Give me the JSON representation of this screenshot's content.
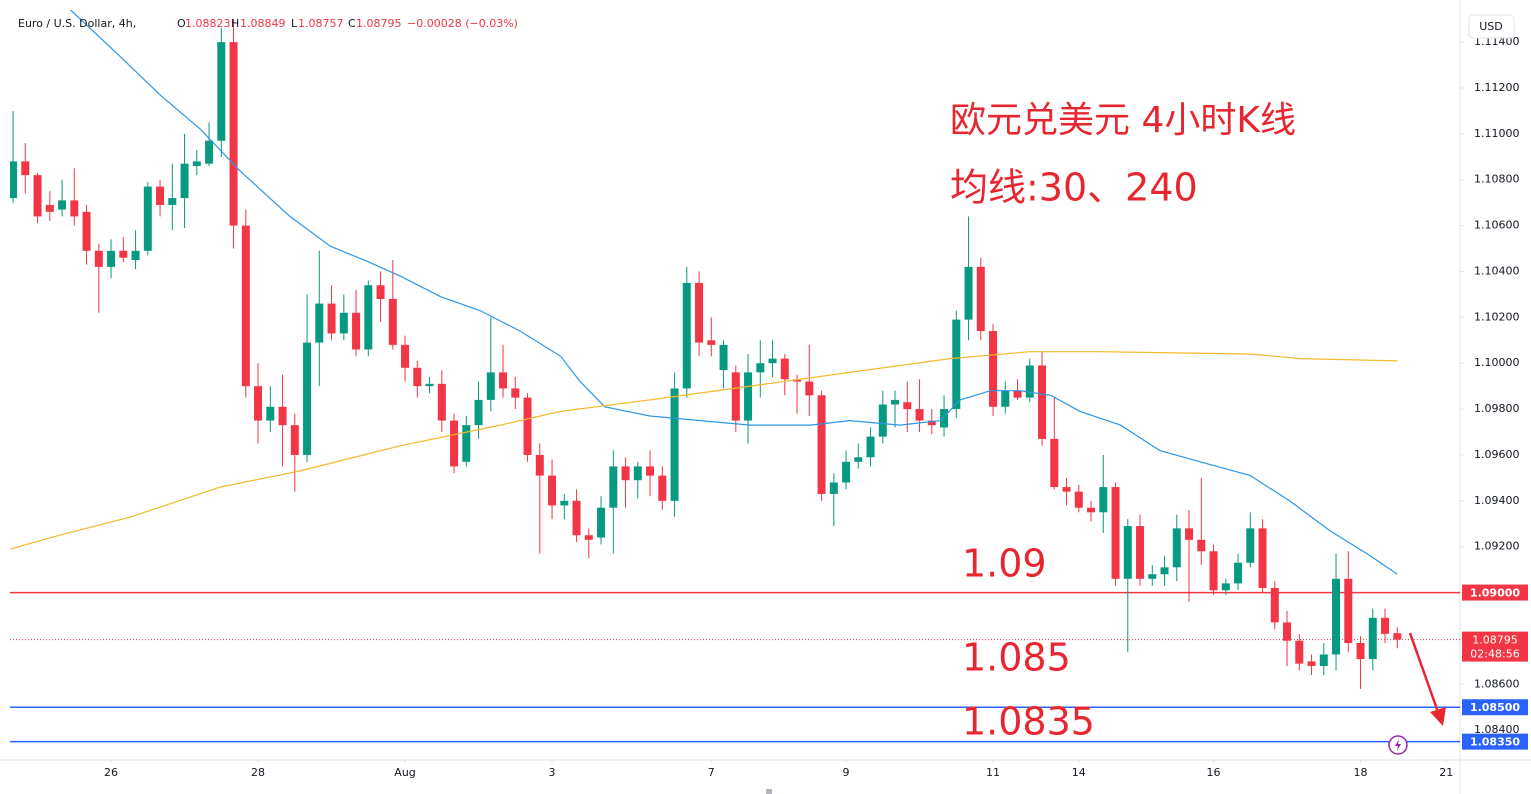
{
  "header": {
    "symbol": "Euro / U.S. Dollar, 4h,",
    "ohlc": [
      {
        "key": "O",
        "value": 1.08823
      },
      {
        "key": "H",
        "value": 1.08849
      },
      {
        "key": "L",
        "value": 1.08757
      },
      {
        "key": "C",
        "value": 1.08795
      }
    ],
    "change": "−0.00028 (−0.03%)",
    "currency": "USD"
  },
  "chart_data": {
    "type": "candlestick",
    "up_color": "#089981",
    "down_color": "#f23645",
    "grid": false,
    "xlim": [
      -0.25,
      118.12
    ],
    "ylim": [
      1.0827,
      1.1154
    ],
    "xticks": [
      {
        "value": 8,
        "label": "26"
      },
      {
        "value": 20,
        "label": "28"
      },
      {
        "value": 32,
        "label": "Aug"
      },
      {
        "value": 44,
        "label": "3"
      },
      {
        "value": 57,
        "label": "7"
      },
      {
        "value": 68,
        "label": "9"
      },
      {
        "value": 80,
        "label": "11"
      },
      {
        "value": 87,
        "label": "14"
      },
      {
        "value": 98,
        "label": "16"
      },
      {
        "value": 110,
        "label": "18"
      },
      {
        "value": 117,
        "label": "21"
      }
    ],
    "yticks": [
      {
        "value": 1.084,
        "label": "1.08400"
      },
      {
        "value": 1.086,
        "label": "1.08600"
      },
      {
        "value": 1.088,
        "label": "1.08800"
      },
      {
        "value": 1.09,
        "label": "1.09000"
      },
      {
        "value": 1.092,
        "label": "1.09200"
      },
      {
        "value": 1.094,
        "label": "1.09400"
      },
      {
        "value": 1.096,
        "label": "1.09600"
      },
      {
        "value": 1.098,
        "label": "1.09800"
      },
      {
        "value": 1.1,
        "label": "1.10000"
      },
      {
        "value": 1.102,
        "label": "1.10200"
      },
      {
        "value": 1.104,
        "label": "1.10400"
      },
      {
        "value": 1.106,
        "label": "1.10600"
      },
      {
        "value": 1.108,
        "label": "1.10800"
      },
      {
        "value": 1.11,
        "label": "1.11000"
      },
      {
        "value": 1.112,
        "label": "1.11200"
      },
      {
        "value": 1.114,
        "label": "1.11400"
      }
    ],
    "candles": [
      [
        1.1072,
        1.111,
        1.107,
        1.1088
      ],
      [
        1.1088,
        1.1096,
        1.1074,
        1.1082
      ],
      [
        1.1082,
        1.1083,
        1.1061,
        1.1064
      ],
      [
        1.1069,
        1.1075,
        1.1062,
        1.1066
      ],
      [
        1.1067,
        1.108,
        1.1064,
        1.1071
      ],
      [
        1.1071,
        1.1085,
        1.106,
        1.1064
      ],
      [
        1.1066,
        1.1069,
        1.1043,
        1.1049
      ],
      [
        1.1049,
        1.1052,
        1.1022,
        1.1042
      ],
      [
        1.1042,
        1.1054,
        1.1037,
        1.1049
      ],
      [
        1.1049,
        1.1055,
        1.1044,
        1.1046
      ],
      [
        1.1045,
        1.1058,
        1.1041,
        1.1049
      ],
      [
        1.1049,
        1.1079,
        1.1047,
        1.1077
      ],
      [
        1.1077,
        1.108,
        1.1064,
        1.1069
      ],
      [
        1.1069,
        1.1087,
        1.1058,
        1.1072
      ],
      [
        1.1072,
        1.11,
        1.1059,
        1.1087
      ],
      [
        1.1086,
        1.1093,
        1.1082,
        1.1088
      ],
      [
        1.1087,
        1.1105,
        1.1086,
        1.1097
      ],
      [
        1.1097,
        1.1146,
        1.109,
        1.114
      ],
      [
        1.114,
        1.115,
        1.105,
        1.106
      ],
      [
        1.106,
        1.1067,
        1.0985,
        1.099
      ],
      [
        1.099,
        1.1,
        1.0965,
        1.0975
      ],
      [
        1.0975,
        1.099,
        1.097,
        1.0981
      ],
      [
        1.0981,
        1.0995,
        1.0955,
        1.0973
      ],
      [
        1.0973,
        1.0978,
        1.0944,
        1.096
      ],
      [
        1.096,
        1.103,
        1.0957,
        1.1009
      ],
      [
        1.1009,
        1.1049,
        1.099,
        1.1026
      ],
      [
        1.1026,
        1.1034,
        1.101,
        1.1013
      ],
      [
        1.1013,
        1.103,
        1.101,
        1.1022
      ],
      [
        1.1022,
        1.1032,
        1.1003,
        1.1006
      ],
      [
        1.1006,
        1.1036,
        1.1003,
        1.1034
      ],
      [
        1.1034,
        1.104,
        1.1018,
        1.1028
      ],
      [
        1.1028,
        1.1045,
        1.1006,
        1.1008
      ],
      [
        1.1008,
        1.1012,
        1.0992,
        1.0998
      ],
      [
        1.0998,
        1.1001,
        1.0985,
        1.099
      ],
      [
        1.099,
        1.0994,
        1.0987,
        1.0991
      ],
      [
        1.0991,
        1.0997,
        1.097,
        1.0975
      ],
      [
        1.0975,
        1.0978,
        1.0952,
        1.0955
      ],
      [
        1.0957,
        1.0977,
        1.0955,
        1.0973
      ],
      [
        1.0973,
        1.0992,
        1.0967,
        1.0984
      ],
      [
        1.0984,
        1.102,
        1.0979,
        1.0996
      ],
      [
        1.0996,
        1.1008,
        1.0985,
        1.0989
      ],
      [
        1.0989,
        1.0994,
        1.098,
        1.0985
      ],
      [
        1.0985,
        1.0987,
        1.0957,
        1.096
      ],
      [
        1.096,
        1.0965,
        1.0917,
        1.0951
      ],
      [
        1.0951,
        1.0958,
        1.0932,
        1.0938
      ],
      [
        1.0938,
        1.0943,
        1.0932,
        1.094
      ],
      [
        1.094,
        1.0945,
        1.0922,
        1.0925
      ],
      [
        1.0925,
        1.0928,
        1.0915,
        1.0923
      ],
      [
        1.0924,
        1.0942,
        1.0921,
        1.0937
      ],
      [
        1.0937,
        1.0962,
        1.0917,
        1.0955
      ],
      [
        1.0955,
        1.0959,
        1.0937,
        1.0949
      ],
      [
        1.0949,
        1.0957,
        1.0941,
        1.0955
      ],
      [
        1.0955,
        1.0962,
        1.0942,
        1.0951
      ],
      [
        1.0951,
        1.0955,
        1.0936,
        1.094
      ],
      [
        1.094,
        1.0996,
        1.0933,
        1.0989
      ],
      [
        1.0989,
        1.1042,
        1.0985,
        1.1035
      ],
      [
        1.1035,
        1.104,
        1.1003,
        1.1009
      ],
      [
        1.101,
        1.102,
        1.1003,
        1.1008
      ],
      [
        1.0997,
        1.101,
        1.0989,
        1.1008
      ],
      [
        1.0996,
        1.0999,
        1.097,
        1.0975
      ],
      [
        1.0975,
        1.1004,
        1.0965,
        1.0996
      ],
      [
        1.0996,
        1.101,
        1.0985,
        1.1
      ],
      [
        1.1,
        1.101,
        1.0994,
        1.1002
      ],
      [
        1.1002,
        1.1004,
        1.0986,
        1.0993
      ],
      [
        1.0993,
        1.0995,
        1.0978,
        1.0992
      ],
      [
        1.0992,
        1.1008,
        1.0977,
        1.0986
      ],
      [
        1.0986,
        1.0988,
        1.094,
        1.0943
      ],
      [
        1.0943,
        1.0952,
        1.0929,
        1.0948
      ],
      [
        1.0948,
        1.0962,
        1.0945,
        1.0957
      ],
      [
        1.0957,
        1.0965,
        1.0954,
        1.0959
      ],
      [
        1.0959,
        1.0972,
        1.0955,
        1.0968
      ],
      [
        1.0968,
        1.0988,
        1.0965,
        1.0982
      ],
      [
        1.0982,
        1.0988,
        1.0972,
        1.0984
      ],
      [
        1.0983,
        1.0992,
        1.097,
        1.098
      ],
      [
        1.098,
        1.0993,
        1.097,
        1.0975
      ],
      [
        1.0975,
        1.098,
        1.0969,
        1.0973
      ],
      [
        1.0972,
        1.0986,
        1.0968,
        1.098
      ],
      [
        1.098,
        1.1023,
        1.0976,
        1.1019
      ],
      [
        1.1019,
        1.1064,
        1.101,
        1.1042
      ],
      [
        1.1042,
        1.1046,
        1.101,
        1.1014
      ],
      [
        1.1014,
        1.1017,
        1.0977,
        1.0981
      ],
      [
        1.0981,
        1.0992,
        1.0978,
        1.0988
      ],
      [
        1.0988,
        1.0993,
        1.0984,
        1.0985
      ],
      [
        1.0985,
        1.1002,
        1.0983,
        1.0999
      ],
      [
        1.0999,
        1.1005,
        1.0964,
        1.0967
      ],
      [
        1.0967,
        1.0985,
        1.0945,
        1.0946
      ],
      [
        1.0946,
        1.095,
        1.0938,
        1.0944
      ],
      [
        1.0944,
        1.0947,
        1.0935,
        1.0937
      ],
      [
        1.0937,
        1.094,
        1.0931,
        1.0935
      ],
      [
        1.0935,
        1.096,
        1.0926,
        1.0946
      ],
      [
        1.0946,
        1.0948,
        1.0903,
        1.0906
      ],
      [
        1.0906,
        1.0932,
        1.0874,
        1.0929
      ],
      [
        1.0929,
        1.0934,
        1.0903,
        1.0906
      ],
      [
        1.0906,
        1.0912,
        1.0903,
        1.0908
      ],
      [
        1.0908,
        1.0916,
        1.0903,
        1.0911
      ],
      [
        1.0911,
        1.0934,
        1.0905,
        1.0928
      ],
      [
        1.0928,
        1.0936,
        1.0896,
        1.0923
      ],
      [
        1.0923,
        1.095,
        1.0912,
        1.0918
      ],
      [
        1.0918,
        1.0921,
        1.0899,
        1.0901
      ],
      [
        1.0901,
        1.0906,
        1.0899,
        1.0904
      ],
      [
        1.0904,
        1.0917,
        1.0901,
        1.0913
      ],
      [
        1.0913,
        1.0935,
        1.0911,
        1.0928
      ],
      [
        1.0928,
        1.0932,
        1.09,
        1.0902
      ],
      [
        1.0902,
        1.0905,
        1.0884,
        1.0887
      ],
      [
        1.0887,
        1.0892,
        1.0868,
        1.0879
      ],
      [
        1.0879,
        1.0882,
        1.0866,
        1.0869
      ],
      [
        1.087,
        1.0873,
        1.0864,
        1.0868
      ],
      [
        1.0868,
        1.0878,
        1.0864,
        1.0873
      ],
      [
        1.0873,
        1.0917,
        1.0866,
        1.0906
      ],
      [
        1.0906,
        1.0918,
        1.0874,
        1.0878
      ],
      [
        1.0878,
        1.0881,
        1.0858,
        1.0871
      ],
      [
        1.0871,
        1.0893,
        1.0866,
        1.0889
      ],
      [
        1.0889,
        1.0893,
        1.0878,
        1.0882
      ],
      [
        1.08823,
        1.08849,
        1.08757,
        1.08795
      ]
    ],
    "lines": [
      {
        "color": "#2f96e8",
        "x": [
          4.7,
          8.7,
          12.0,
          15.3,
          18.5,
          22.6,
          25.9,
          29.1,
          31.6,
          34.9,
          38.1,
          41.4,
          44.7,
          46.3,
          48.3,
          52.0,
          56.1,
          60.2,
          65.1,
          68.3,
          72.4,
          75.7,
          77.3,
          79.8,
          82.2,
          84.7,
          87.1,
          90.4,
          93.6,
          96.9,
          101.0,
          104.2,
          107.5,
          110.8,
          113.0
        ],
        "values": [
          1.1154,
          1.1134,
          1.1117,
          1.1102,
          1.1084,
          1.1064,
          1.1051,
          1.1044,
          1.1038,
          1.1029,
          1.1023,
          1.1014,
          1.1003,
          1.0992,
          1.0981,
          1.0977,
          1.0975,
          1.0973,
          1.0973,
          1.0975,
          1.0973,
          1.0975,
          1.0984,
          1.0988,
          1.0988,
          1.0986,
          1.0979,
          1.0973,
          1.0962,
          1.0957,
          1.0951,
          1.094,
          1.0927,
          1.0916,
          1.0908
        ]
      },
      {
        "color": "#f5b82e",
        "x": [
          -0.2,
          3.8,
          9.6,
          16.9,
          23.4,
          31.6,
          39.8,
          44.7,
          52.0,
          60.2,
          68.3,
          76.5,
          83.0,
          88.7,
          101.0,
          105.1,
          113.0
        ],
        "values": [
          1.0919,
          1.0925,
          1.0933,
          1.0946,
          1.0953,
          1.0964,
          1.0973,
          1.0979,
          1.0984,
          1.099,
          1.0996,
          1.1002,
          1.1005,
          1.1005,
          1.1004,
          1.1002,
          1.1001
        ]
      }
    ],
    "price_lines": [
      {
        "value": 1.09,
        "label": "1.09000",
        "color": "#f23645"
      },
      {
        "value": 1.085,
        "label": "1.08500",
        "color": "#2962ff"
      },
      {
        "value": 1.0835,
        "label": "1.08350",
        "color": "#2962ff"
      }
    ],
    "last_price": 1.08795,
    "countdown": "02:48:56",
    "annotations": [
      "欧元兑美元 4小时K线",
      "均线:30、240",
      "1.09",
      "1.085",
      "1.0835"
    ]
  }
}
